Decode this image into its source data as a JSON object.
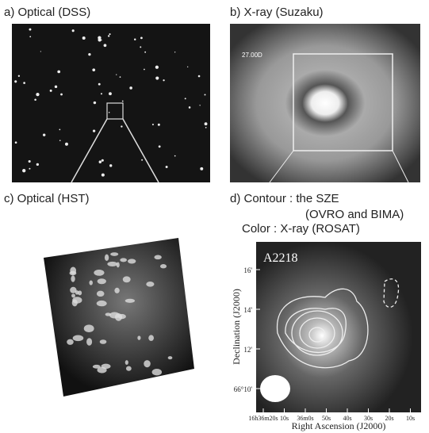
{
  "panels": [
    {
      "label": "a) Optical (DSS)"
    },
    {
      "label": "b) X-ray (Suzaku)",
      "annotation": "27.00D"
    },
    {
      "label": "c) Optical (HST)"
    },
    {
      "label": "d) Contour : the SZE",
      "label_lines": [
        "(OVRO and BIMA)",
        "Color : X-ray (ROSAT)"
      ],
      "cluster": "A2218",
      "y_axis_label": "Declination (J2000)",
      "x_axis_label": "Right Ascension (J2000)",
      "yticks": [
        "16'",
        "14'",
        "12'",
        "66°10'"
      ],
      "xticks": [
        "16h36m20s",
        "10s",
        "36m0s",
        "50s",
        "40s",
        "30s",
        "20s",
        "10s"
      ]
    }
  ]
}
